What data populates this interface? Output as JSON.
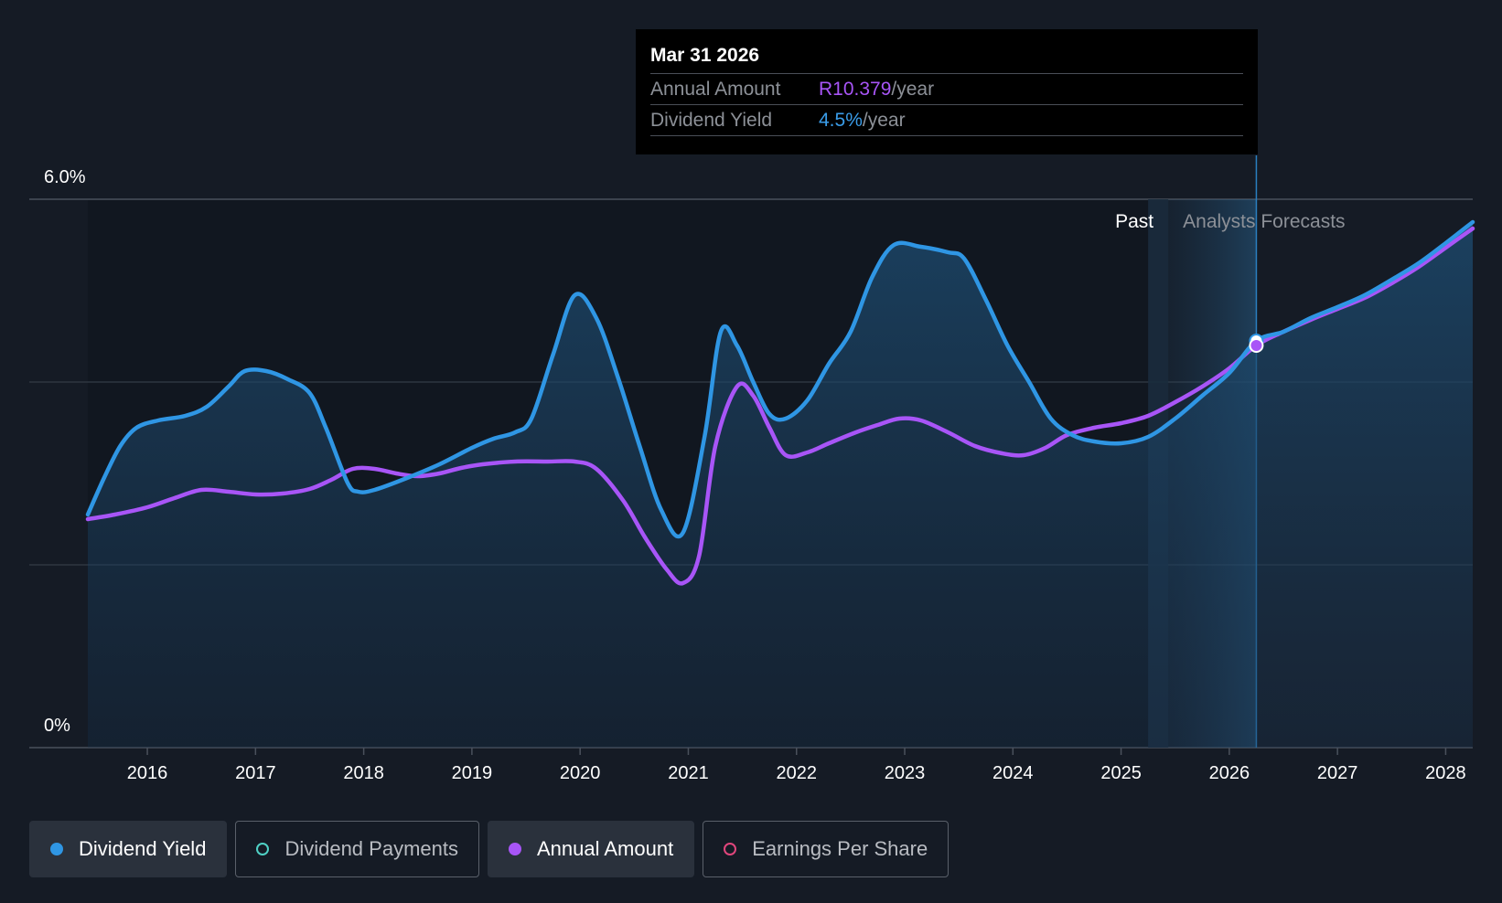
{
  "tooltip": {
    "date": "Mar 31 2026",
    "annual_label": "Annual Amount",
    "annual_value": "R10.379",
    "annual_unit": "/year",
    "yield_label": "Dividend Yield",
    "yield_value": "4.5%",
    "yield_unit": "/year"
  },
  "regions": {
    "past": "Past",
    "forecast": "Analysts Forecasts"
  },
  "legend": [
    {
      "label": "Dividend Yield",
      "color": "#2f96e4",
      "active": true,
      "filled": true
    },
    {
      "label": "Dividend Payments",
      "color": "#4fd1c5",
      "active": false,
      "filled": false
    },
    {
      "label": "Annual Amount",
      "color": "#a855f7",
      "active": true,
      "filled": true
    },
    {
      "label": "Earnings Per Share",
      "color": "#e0467c",
      "active": false,
      "filled": false
    }
  ],
  "chart_data": {
    "type": "line",
    "y_tick_labels": [
      "6.0%",
      "0%"
    ],
    "ylim": [
      0,
      6.0
    ],
    "x_tick_labels": [
      "2016",
      "2017",
      "2018",
      "2019",
      "2020",
      "2021",
      "2022",
      "2023",
      "2024",
      "2025",
      "2026",
      "2027",
      "2028"
    ],
    "xlim": [
      2015.45,
      2028.25
    ],
    "grid": true,
    "forecast_start": 2025.25,
    "highlight_date": 2026.25,
    "series": [
      {
        "name": "Dividend Yield",
        "color": "#2f96e4",
        "area": true,
        "x": [
          2015.45,
          2015.6,
          2015.75,
          2015.9,
          2016.1,
          2016.35,
          2016.55,
          2016.75,
          2016.9,
          2017.1,
          2017.3,
          2017.5,
          2017.65,
          2017.85,
          2017.95,
          2018.1,
          2018.4,
          2018.7,
          2019.0,
          2019.2,
          2019.4,
          2019.55,
          2019.75,
          2019.95,
          2020.15,
          2020.35,
          2020.55,
          2020.75,
          2020.95,
          2021.15,
          2021.3,
          2021.45,
          2021.6,
          2021.75,
          2021.9,
          2022.1,
          2022.3,
          2022.5,
          2022.7,
          2022.9,
          2023.15,
          2023.4,
          2023.55,
          2023.75,
          2023.95,
          2024.15,
          2024.35,
          2024.55,
          2024.75,
          2025.0,
          2025.25,
          2025.5,
          2025.75,
          2026.0,
          2026.25,
          2026.5,
          2026.75,
          2027.0,
          2027.25,
          2027.5,
          2027.75,
          2028.0,
          2028.25
        ],
        "y": [
          2.55,
          2.95,
          3.3,
          3.5,
          3.58,
          3.63,
          3.73,
          3.95,
          4.12,
          4.12,
          4.03,
          3.88,
          3.5,
          2.9,
          2.8,
          2.82,
          2.95,
          3.1,
          3.28,
          3.38,
          3.45,
          3.6,
          4.3,
          4.95,
          4.7,
          4.05,
          3.3,
          2.6,
          2.35,
          3.4,
          4.55,
          4.4,
          4.0,
          3.65,
          3.6,
          3.8,
          4.2,
          4.55,
          5.15,
          5.5,
          5.48,
          5.42,
          5.35,
          4.9,
          4.4,
          4.0,
          3.6,
          3.42,
          3.35,
          3.33,
          3.4,
          3.6,
          3.85,
          4.1,
          4.45,
          4.55,
          4.7,
          4.82,
          4.95,
          5.12,
          5.3,
          5.52,
          5.75
        ]
      },
      {
        "name": "Annual Amount",
        "color": "#a855f7",
        "area": false,
        "x": [
          2015.45,
          2015.7,
          2016.0,
          2016.25,
          2016.5,
          2016.75,
          2017.0,
          2017.25,
          2017.5,
          2017.7,
          2017.9,
          2018.1,
          2018.3,
          2018.5,
          2018.7,
          2018.9,
          2019.1,
          2019.4,
          2019.7,
          2019.95,
          2020.15,
          2020.4,
          2020.6,
          2020.8,
          2020.95,
          2021.1,
          2021.25,
          2021.45,
          2021.6,
          2021.75,
          2021.9,
          2022.1,
          2022.3,
          2022.55,
          2022.75,
          2022.95,
          2023.15,
          2023.4,
          2023.65,
          2023.9,
          2024.1,
          2024.3,
          2024.5,
          2024.75,
          2025.0,
          2025.25,
          2025.5,
          2025.75,
          2026.0,
          2026.25,
          2026.5,
          2026.75,
          2027.0,
          2027.25,
          2027.5,
          2027.75,
          2028.0,
          2028.25
        ],
        "y": [
          2.5,
          2.55,
          2.63,
          2.73,
          2.82,
          2.8,
          2.77,
          2.78,
          2.83,
          2.93,
          3.05,
          3.05,
          3.0,
          2.97,
          3.0,
          3.06,
          3.1,
          3.13,
          3.13,
          3.13,
          3.05,
          2.7,
          2.3,
          1.95,
          1.8,
          2.1,
          3.3,
          3.95,
          3.85,
          3.5,
          3.2,
          3.23,
          3.33,
          3.45,
          3.53,
          3.6,
          3.58,
          3.45,
          3.3,
          3.22,
          3.2,
          3.28,
          3.42,
          3.5,
          3.55,
          3.63,
          3.78,
          3.95,
          4.15,
          4.4,
          4.55,
          4.68,
          4.8,
          4.92,
          5.08,
          5.26,
          5.47,
          5.68
        ]
      }
    ],
    "highlight_points": [
      {
        "series": "Dividend Yield",
        "x": 2026.25,
        "y": 4.45
      },
      {
        "series": "Annual Amount",
        "x": 2026.25,
        "y": 4.4
      }
    ]
  }
}
